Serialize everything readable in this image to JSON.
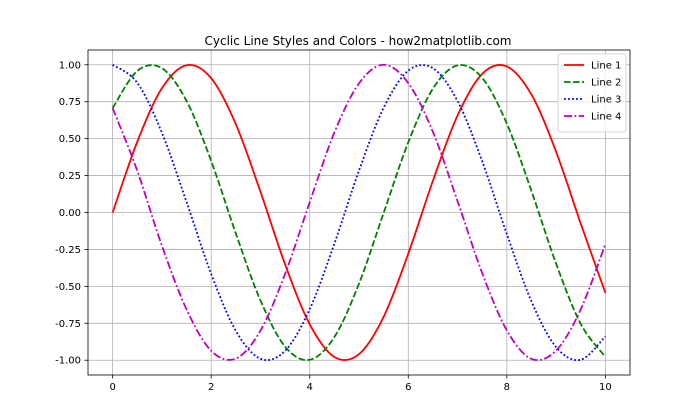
{
  "chart_data": {
    "type": "line",
    "title": "Cyclic Line Styles and Colors - how2matplotlib.com",
    "xlabel": "",
    "ylabel": "",
    "xlim": [
      -0.5,
      10.5
    ],
    "ylim": [
      -1.1,
      1.1
    ],
    "grid": true,
    "legend_position": "top-right",
    "x_ticks": [
      0,
      2,
      4,
      6,
      8,
      10
    ],
    "x_tick_labels": [
      "0",
      "2",
      "4",
      "6",
      "8",
      "10"
    ],
    "y_ticks": [
      1.0,
      0.75,
      0.5,
      0.25,
      0.0,
      -0.25,
      -0.5,
      -0.75,
      -1.0
    ],
    "y_tick_labels": [
      "1.00",
      "0.75",
      "0.50",
      "0.25",
      "0.00",
      "-0.25",
      "-0.50",
      "-0.75",
      "-1.00"
    ],
    "x": [
      0,
      0.5,
      1,
      1.5,
      2,
      2.5,
      3,
      3.5,
      4,
      4.5,
      5,
      5.5,
      6,
      6.5,
      7,
      7.5,
      8,
      8.5,
      9,
      9.5,
      10
    ],
    "series": [
      {
        "name": "Line 1",
        "color": "#ff0000",
        "style": "solid",
        "values": [
          0.0,
          0.479,
          0.841,
          0.997,
          0.909,
          0.598,
          0.141,
          -0.351,
          -0.757,
          -0.978,
          -0.959,
          -0.706,
          -0.279,
          0.215,
          0.657,
          0.938,
          0.989,
          0.798,
          0.412,
          -0.075,
          -0.544
        ]
      },
      {
        "name": "Line 2",
        "color": "#008000",
        "style": "dashed",
        "values": [
          0.707,
          0.958,
          0.977,
          0.755,
          0.349,
          -0.142,
          -0.595,
          -0.908,
          -0.997,
          -0.843,
          -0.482,
          -0.003,
          0.475,
          0.838,
          0.996,
          0.911,
          0.602,
          0.146,
          -0.346,
          -0.754,
          -0.977
        ]
      },
      {
        "name": "Line 3",
        "color": "#0000ff",
        "style": "dotted",
        "values": [
          1.0,
          0.878,
          0.54,
          0.071,
          -0.416,
          -0.801,
          -0.99,
          -0.936,
          -0.654,
          -0.211,
          0.284,
          0.709,
          0.96,
          0.977,
          0.754,
          0.347,
          -0.146,
          -0.602,
          -0.911,
          -0.997,
          -0.839
        ]
      },
      {
        "name": "Line 4",
        "color": "#bf00bf",
        "style": "dashdot",
        "values": [
          0.707,
          0.282,
          -0.225,
          -0.656,
          -0.936,
          -0.989,
          -0.8,
          -0.416,
          0.07,
          0.541,
          0.874,
          1.0,
          0.876,
          0.546,
          0.077,
          -0.41,
          -0.798,
          -0.991,
          -0.934,
          -0.656,
          -0.214
        ]
      }
    ]
  }
}
